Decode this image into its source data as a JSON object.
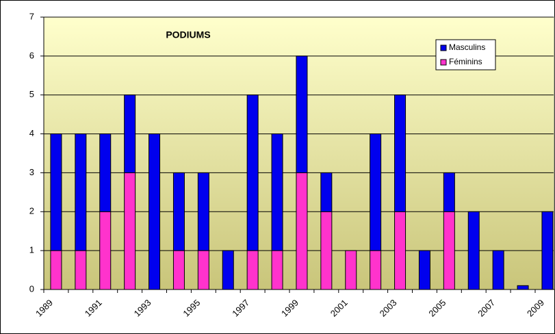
{
  "chart_data": {
    "type": "stacked-bar",
    "title": "PODIUMS",
    "categories": [
      "1989",
      null,
      "1991",
      null,
      "1993",
      null,
      "1995",
      null,
      "1997",
      null,
      "1999",
      null,
      "2001",
      null,
      "2003",
      null,
      "2005",
      null,
      "2007",
      null,
      "2009"
    ],
    "series": [
      {
        "name": "Féminins",
        "color": "#ff33cc",
        "values": [
          1,
          1,
          2,
          3,
          0,
          1,
          1,
          0,
          1,
          1,
          3,
          2,
          1,
          1,
          2,
          0,
          2,
          0,
          0,
          0,
          0
        ]
      },
      {
        "name": "Masculins",
        "color": "#0000ee",
        "values": [
          3,
          3,
          2,
          2,
          4,
          2,
          2,
          1,
          4,
          3,
          3,
          1,
          0,
          3,
          3,
          1,
          1,
          2,
          1,
          0.1,
          2
        ]
      }
    ],
    "ylim": [
      0,
      7
    ],
    "yticks": [
      0,
      1,
      2,
      3,
      4,
      5,
      6,
      7
    ],
    "grid": true
  }
}
